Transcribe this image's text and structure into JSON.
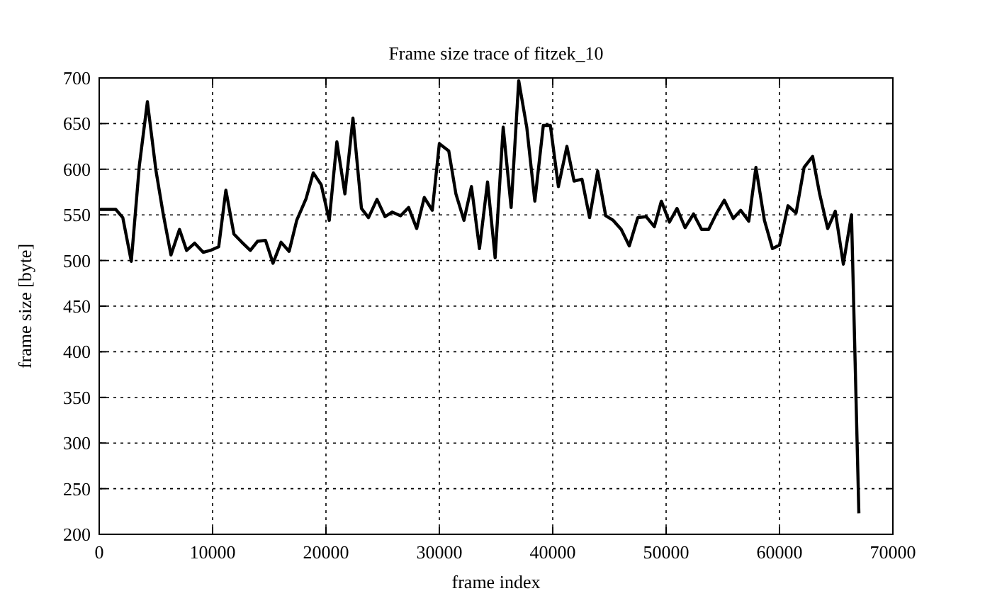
{
  "chart_data": {
    "type": "line",
    "title": "Frame size trace of fitzek_10",
    "xlabel": "frame index",
    "ylabel": "frame size [byte]",
    "x": [
      0,
      1460,
      2080,
      2830,
      3540,
      4250,
      5000,
      5630,
      6330,
      7080,
      7710,
      8420,
      9170,
      9790,
      10540,
      11170,
      11880,
      12580,
      13330,
      13960,
      14670,
      15330,
      16040,
      16750,
      17420,
      18250,
      18880,
      19580,
      20290,
      20960,
      21670,
      22380,
      23130,
      23750,
      24500,
      25210,
      25830,
      26580,
      27290,
      28000,
      28670,
      29380,
      30000,
      30830,
      31460,
      32170,
      32830,
      33540,
      34250,
      34920,
      35630,
      36330,
      37000,
      37710,
      38420,
      39170,
      39790,
      40500,
      41250,
      41880,
      42580,
      43250,
      43960,
      44670,
      45330,
      46040,
      46750,
      47500,
      48250,
      48960,
      49580,
      50290,
      50960,
      51670,
      52420,
      53130,
      53750,
      54460,
      55130,
      55920,
      56580,
      57290,
      57920,
      58670,
      59380,
      60000,
      60750,
      61460,
      62170,
      62920,
      63540,
      64250,
      64920,
      65630,
      66350,
      67000
    ],
    "series": [
      {
        "color": "#000000",
        "values": [
          556,
          556,
          547,
          499,
          604,
          674,
          599,
          552,
          506,
          534,
          511,
          519,
          509,
          511,
          515,
          577,
          529,
          520,
          511,
          521,
          522,
          497,
          520,
          510,
          544,
          568,
          596,
          583,
          544,
          630,
          573,
          656,
          557,
          547,
          567,
          548,
          553,
          549,
          558,
          535,
          569,
          555,
          628,
          620,
          573,
          544,
          581,
          513,
          586,
          503,
          646,
          558,
          697,
          646,
          565,
          648,
          648,
          581,
          625,
          587,
          589,
          547,
          598,
          549,
          544,
          534,
          516,
          547,
          548,
          537,
          565,
          542,
          557,
          536,
          551,
          534,
          534,
          552,
          566,
          546,
          555,
          543,
          602,
          544,
          513,
          517,
          560,
          552,
          602,
          614,
          573,
          535,
          554,
          496,
          550,
          223
        ]
      }
    ],
    "xlim": [
      0,
      70000
    ],
    "xticks": [
      0,
      10000,
      20000,
      30000,
      40000,
      50000,
      60000,
      70000
    ],
    "ylim": [
      200,
      700
    ],
    "yticks": [
      200,
      250,
      300,
      350,
      400,
      450,
      500,
      550,
      600,
      650,
      700
    ],
    "grid": true,
    "marker": "none",
    "line_style": "solid"
  }
}
